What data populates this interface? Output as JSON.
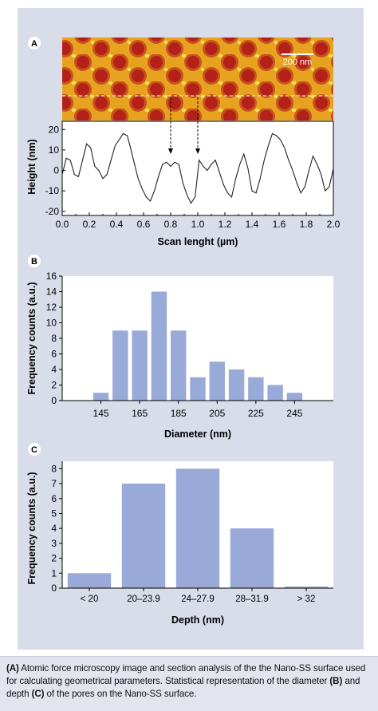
{
  "panel_a": {
    "label": "A",
    "scale_bar_label": "200 nm",
    "chart_data": {
      "type": "line",
      "xlabel": "Scan lenght (µm)",
      "ylabel": "Height (nm)",
      "xlim": [
        0.0,
        2.0
      ],
      "ylim": [
        -22,
        24
      ],
      "xticks": [
        "0.0",
        "0.2",
        "0.4",
        "0.6",
        "0.8",
        "1.0",
        "1.2",
        "1.4",
        "1.6",
        "1.8",
        "2.0"
      ],
      "yticks": [
        "20",
        "10",
        "0",
        "-10",
        "-20"
      ],
      "arrows_at": [
        0.8,
        1.0
      ],
      "x": [
        0.0,
        0.03,
        0.06,
        0.09,
        0.12,
        0.15,
        0.18,
        0.21,
        0.24,
        0.27,
        0.3,
        0.33,
        0.36,
        0.39,
        0.42,
        0.45,
        0.48,
        0.5,
        0.53,
        0.56,
        0.59,
        0.62,
        0.65,
        0.68,
        0.71,
        0.74,
        0.77,
        0.8,
        0.83,
        0.86,
        0.89,
        0.92,
        0.95,
        0.98,
        1.01,
        1.04,
        1.07,
        1.1,
        1.13,
        1.16,
        1.19,
        1.22,
        1.25,
        1.28,
        1.31,
        1.34,
        1.37,
        1.4,
        1.43,
        1.46,
        1.49,
        1.52,
        1.55,
        1.58,
        1.61,
        1.64,
        1.67,
        1.7,
        1.73,
        1.76,
        1.79,
        1.82,
        1.85,
        1.88,
        1.91,
        1.94,
        1.97,
        2.0
      ],
      "y": [
        -2,
        6,
        5,
        -2,
        -3,
        5,
        13,
        11,
        2,
        0,
        -4,
        -2,
        5,
        12,
        15,
        18,
        17,
        12,
        4,
        -4,
        -9,
        -13,
        -15,
        -10,
        -3,
        3,
        4,
        2,
        4,
        3,
        -6,
        -12,
        -16,
        -13,
        5,
        2,
        0,
        3,
        5,
        -1,
        -7,
        -11,
        -13,
        -4,
        3,
        8,
        1,
        -10,
        -11,
        -4,
        5,
        12,
        18,
        17,
        15,
        11,
        5,
        0,
        -6,
        -11,
        -8,
        0,
        7,
        3,
        -2,
        -10,
        -8,
        1
      ]
    }
  },
  "panel_b": {
    "label": "B",
    "chart_data": {
      "type": "bar",
      "xlabel": "Diameter (nm)",
      "ylabel": "Frequency counts (a.u.)",
      "categories": [
        "145",
        "155",
        "165",
        "175",
        "185",
        "195",
        "205",
        "215",
        "225",
        "235",
        "245"
      ],
      "values": [
        1,
        9,
        9,
        14,
        9,
        3,
        5,
        4,
        3,
        2,
        1
      ],
      "xticks": [
        "145",
        "165",
        "185",
        "205",
        "225",
        "245"
      ],
      "yticks": [
        "0",
        "2",
        "4",
        "6",
        "8",
        "10",
        "12",
        "14",
        "16"
      ],
      "ylim": [
        0,
        16
      ],
      "xlim": [
        125,
        265
      ],
      "bar_color": "#9aaad8"
    }
  },
  "panel_c": {
    "label": "C",
    "chart_data": {
      "type": "bar",
      "xlabel": "Depth (nm)",
      "ylabel": "Frequency counts (a.u.)",
      "categories": [
        "< 20",
        "20–23.9",
        "24–27.9",
        "28–31.9",
        "> 32"
      ],
      "values": [
        1,
        7,
        8,
        4,
        0.1
      ],
      "yticks": [
        "0",
        "1",
        "2",
        "3",
        "4",
        "5",
        "6",
        "7",
        "8"
      ],
      "ylim": [
        0,
        8.5
      ],
      "bar_color": "#9aaad8"
    }
  },
  "caption": {
    "a_tag": "(A)",
    "text_1": " Atomic force microscopy image and section analysis of the the Nano-SS surface used for calculating geometrical parameters. Statistical representation of the diameter ",
    "b_tag": "(B)",
    "text_2": " and depth ",
    "c_tag": "(C)",
    "text_3": " of the pores on the Nano-SS surface."
  }
}
